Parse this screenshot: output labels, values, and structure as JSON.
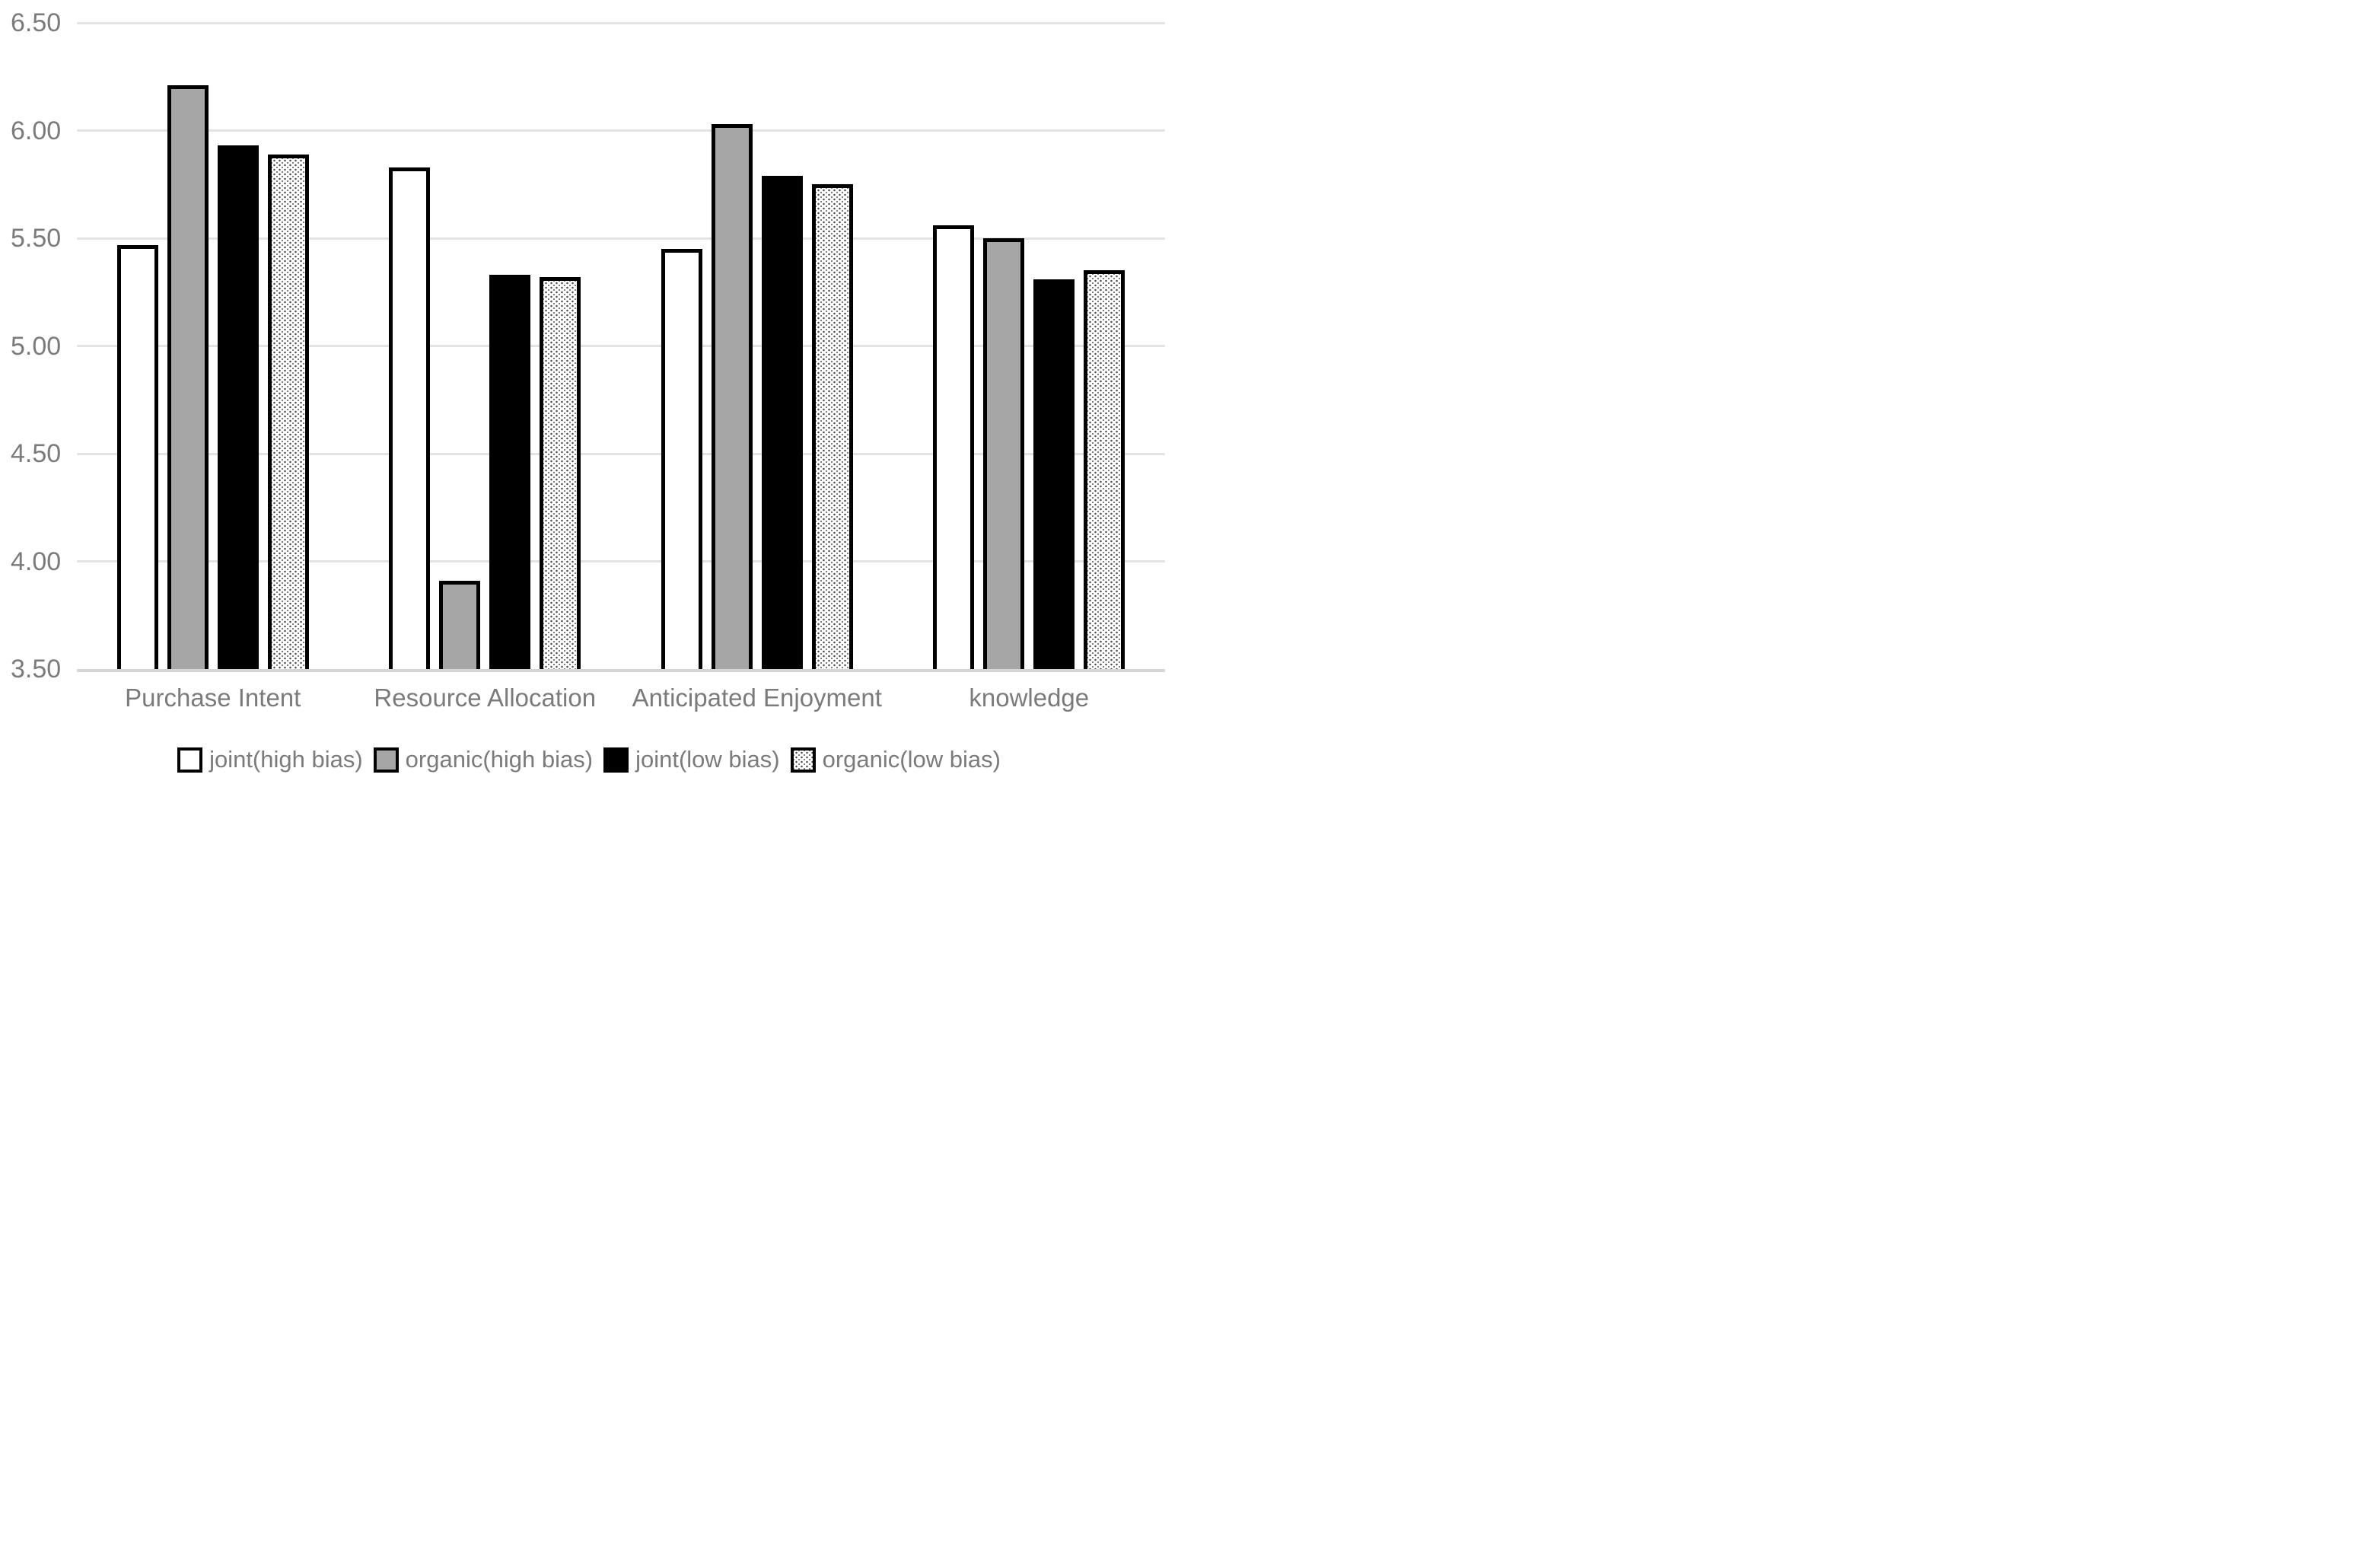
{
  "chart_data": {
    "type": "bar",
    "title": "",
    "xlabel": "",
    "ylabel": "",
    "categories": [
      "Purchase Intent",
      "Resource Allocation",
      "Anticipated Enjoyment",
      "knowledge"
    ],
    "series": [
      {
        "name": "joint(high bias)",
        "fill": "white",
        "values": [
          5.47,
          5.83,
          5.45,
          5.56
        ]
      },
      {
        "name": "organic(high bias)",
        "fill": "gray",
        "values": [
          6.21,
          3.91,
          6.03,
          5.5
        ]
      },
      {
        "name": "joint(low bias)",
        "fill": "black",
        "values": [
          5.93,
          5.33,
          5.79,
          5.31
        ]
      },
      {
        "name": "organic(low bias)",
        "fill": "dotted",
        "values": [
          5.89,
          5.32,
          5.75,
          5.35
        ]
      }
    ],
    "ylim": [
      3.5,
      6.5
    ],
    "ytick_step": 0.5,
    "ytick_labels": [
      "6.50",
      "6.00",
      "5.50",
      "5.00",
      "4.50",
      "4.00",
      "3.50"
    ],
    "grid": true,
    "legend_position": "bottom"
  },
  "colors": {
    "bar_gray_fill": "#a6a6a6",
    "bar_black_fill": "#000000",
    "bar_white_fill": "#ffffff",
    "bar_border": "#000000",
    "gridline": "#e3e3e3",
    "baseline": "#d6d6d6",
    "text_gray": "#7b7b7b",
    "dot_pattern": "#4d4d4d",
    "background": "#ffffff"
  }
}
